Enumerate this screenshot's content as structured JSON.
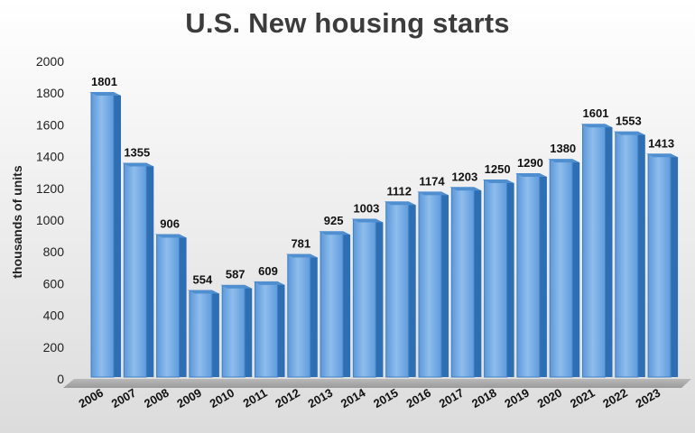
{
  "chart_data": {
    "type": "bar",
    "title": "U.S. New housing starts",
    "ylabel": "thousands of units",
    "xlabel": "",
    "ylim": [
      0,
      2000
    ],
    "yticks": [
      0,
      200,
      400,
      600,
      800,
      1000,
      1200,
      1400,
      1600,
      1800,
      2000
    ],
    "categories": [
      "2006",
      "2007",
      "2008",
      "2009",
      "2010",
      "2011",
      "2012",
      "2013",
      "2014",
      "2015",
      "2016",
      "2017",
      "2018",
      "2019",
      "2020",
      "2021",
      "2022",
      "2023"
    ],
    "values": [
      1801,
      1355,
      906,
      554,
      587,
      609,
      781,
      925,
      1003,
      1112,
      1174,
      1203,
      1250,
      1290,
      1380,
      1601,
      1553,
      1413
    ],
    "grid": false,
    "legend": "none",
    "colors": {
      "bar_front": "#6aa6e3",
      "bar_highlight": "#9cc8f2",
      "bar_side": "#2e6fb3",
      "bar_top": "#4f8fd0",
      "floor": "#a9a9a9"
    }
  }
}
